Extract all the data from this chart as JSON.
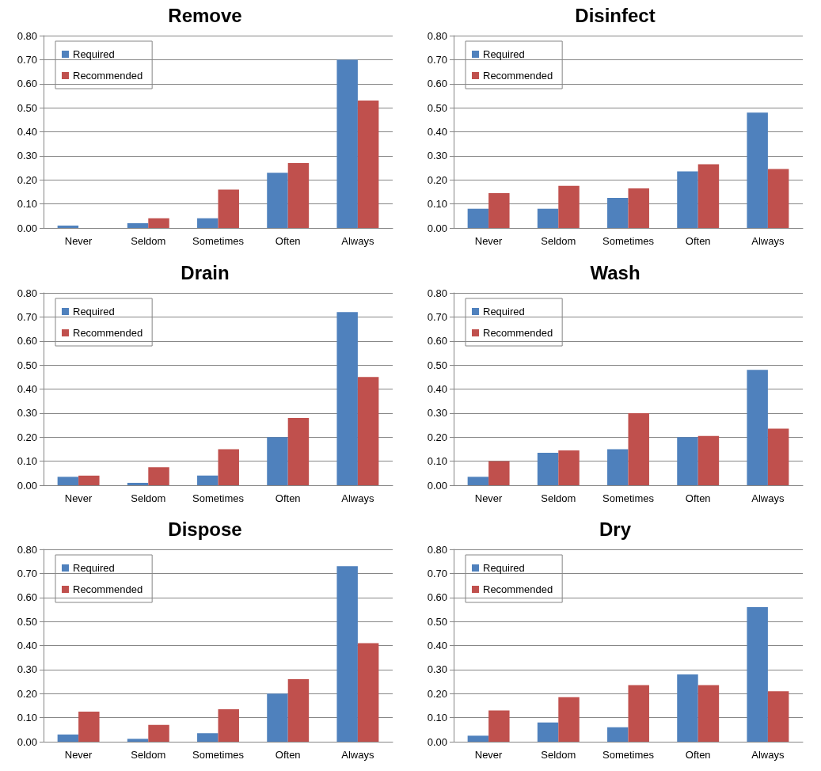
{
  "chart_data": [
    {
      "type": "bar",
      "title": "Remove",
      "categories": [
        "Never",
        "Seldom",
        "Sometimes",
        "Often",
        "Always"
      ],
      "series": [
        {
          "name": "Required",
          "color": "#4f81bd",
          "values": [
            0.01,
            0.02,
            0.04,
            0.23,
            0.7
          ]
        },
        {
          "name": "Recommended",
          "color": "#c0504d",
          "values": [
            0,
            0.04,
            0.16,
            0.27,
            0.53
          ]
        }
      ],
      "ylim": [
        0,
        0.8
      ],
      "yticks": [
        {
          "value": 0,
          "label": "0.00"
        },
        {
          "value": 0.1,
          "label": "0.10"
        },
        {
          "value": 0.2,
          "label": "0.20"
        },
        {
          "value": 0.3,
          "label": "0.30"
        },
        {
          "value": 0.4,
          "label": "0.40"
        },
        {
          "value": 0.5,
          "label": "0.50"
        },
        {
          "value": 0.6,
          "label": "0.60"
        },
        {
          "value": 0.7,
          "label": "0.70"
        },
        {
          "value": 0.8,
          "label": "0.80"
        }
      ],
      "grid": "y",
      "legend": "top left"
    },
    {
      "type": "bar",
      "title": "Disinfect",
      "categories": [
        "Never",
        "Seldom",
        "Sometimes",
        "Often",
        "Always"
      ],
      "series": [
        {
          "name": "Required",
          "color": "#4f81bd",
          "values": [
            0.08,
            0.08,
            0.125,
            0.235,
            0.48
          ]
        },
        {
          "name": "Recommended",
          "color": "#c0504d",
          "values": [
            0.145,
            0.175,
            0.165,
            0.265,
            0.245
          ]
        }
      ],
      "ylim": [
        0,
        0.8
      ],
      "yticks": [
        {
          "value": 0,
          "label": "0.00"
        },
        {
          "value": 0.1,
          "label": "0.10"
        },
        {
          "value": 0.2,
          "label": "0.20"
        },
        {
          "value": 0.3,
          "label": "0.30"
        },
        {
          "value": 0.4,
          "label": "0.40"
        },
        {
          "value": 0.5,
          "label": "0.50"
        },
        {
          "value": 0.6,
          "label": "0.60"
        },
        {
          "value": 0.7,
          "label": "0.70"
        },
        {
          "value": 0.8,
          "label": "0.80"
        }
      ],
      "grid": "y",
      "legend": "top left"
    },
    {
      "type": "bar",
      "title": "Drain",
      "categories": [
        "Never",
        "Seldom",
        "Sometimes",
        "Often",
        "Always"
      ],
      "series": [
        {
          "name": "Required",
          "color": "#4f81bd",
          "values": [
            0.035,
            0.01,
            0.04,
            0.2,
            0.72
          ]
        },
        {
          "name": "Recommended",
          "color": "#c0504d",
          "values": [
            0.04,
            0.075,
            0.15,
            0.28,
            0.45
          ]
        }
      ],
      "ylim": [
        0,
        0.8
      ],
      "yticks": [
        {
          "value": 0,
          "label": "0.00"
        },
        {
          "value": 0.1,
          "label": "0.10"
        },
        {
          "value": 0.2,
          "label": "0.20"
        },
        {
          "value": 0.3,
          "label": "0.30"
        },
        {
          "value": 0.4,
          "label": "0.40"
        },
        {
          "value": 0.5,
          "label": "0.50"
        },
        {
          "value": 0.6,
          "label": "0.60"
        },
        {
          "value": 0.7,
          "label": "0.70"
        },
        {
          "value": 0.8,
          "label": "0.80"
        }
      ],
      "grid": "y",
      "legend": "top left"
    },
    {
      "type": "bar",
      "title": "Wash",
      "categories": [
        "Never",
        "Seldom",
        "Sometimes",
        "Often",
        "Always"
      ],
      "series": [
        {
          "name": "Required",
          "color": "#4f81bd",
          "values": [
            0.035,
            0.135,
            0.15,
            0.2,
            0.48
          ]
        },
        {
          "name": "Recommended",
          "color": "#c0504d",
          "values": [
            0.1,
            0.145,
            0.3,
            0.205,
            0.235
          ]
        }
      ],
      "ylim": [
        0,
        0.8
      ],
      "yticks": [
        {
          "value": 0,
          "label": "0.00"
        },
        {
          "value": 0.1,
          "label": "0.10"
        },
        {
          "value": 0.2,
          "label": "0.20"
        },
        {
          "value": 0.3,
          "label": "0.30"
        },
        {
          "value": 0.4,
          "label": "0.40"
        },
        {
          "value": 0.5,
          "label": "0.50"
        },
        {
          "value": 0.6,
          "label": "0.60"
        },
        {
          "value": 0.7,
          "label": "0.70"
        },
        {
          "value": 0.8,
          "label": "0.80"
        }
      ],
      "grid": "y",
      "legend": "top left"
    },
    {
      "type": "bar",
      "title": "Dispose",
      "categories": [
        "Never",
        "Seldom",
        "Sometimes",
        "Often",
        "Always"
      ],
      "series": [
        {
          "name": "Required",
          "color": "#4f81bd",
          "values": [
            0.03,
            0.012,
            0.035,
            0.2,
            0.73
          ]
        },
        {
          "name": "Recommended",
          "color": "#c0504d",
          "values": [
            0.125,
            0.07,
            0.135,
            0.26,
            0.41
          ]
        }
      ],
      "ylim": [
        0,
        0.8
      ],
      "yticks": [
        {
          "value": 0,
          "label": "0.00"
        },
        {
          "value": 0.1,
          "label": "0.10"
        },
        {
          "value": 0.2,
          "label": "0.20"
        },
        {
          "value": 0.3,
          "label": "0.30"
        },
        {
          "value": 0.4,
          "label": "0.40"
        },
        {
          "value": 0.5,
          "label": "0.50"
        },
        {
          "value": 0.6,
          "label": "0.60"
        },
        {
          "value": 0.7,
          "label": "0.70"
        },
        {
          "value": 0.8,
          "label": "0.80"
        }
      ],
      "grid": "y",
      "legend": "top left"
    },
    {
      "type": "bar",
      "title": "Dry",
      "categories": [
        "Never",
        "Seldom",
        "Sometimes",
        "Often",
        "Always"
      ],
      "series": [
        {
          "name": "Required",
          "color": "#4f81bd",
          "values": [
            0.025,
            0.08,
            0.06,
            0.28,
            0.56
          ]
        },
        {
          "name": "Recommended",
          "color": "#c0504d",
          "values": [
            0.13,
            0.185,
            0.235,
            0.235,
            0.21
          ]
        }
      ],
      "ylim": [
        0,
        0.8
      ],
      "yticks": [
        {
          "value": 0,
          "label": "0.00"
        },
        {
          "value": 0.1,
          "label": "0.10"
        },
        {
          "value": 0.2,
          "label": "0.20"
        },
        {
          "value": 0.3,
          "label": "0.30"
        },
        {
          "value": 0.4,
          "label": "0.40"
        },
        {
          "value": 0.5,
          "label": "0.50"
        },
        {
          "value": 0.6,
          "label": "0.60"
        },
        {
          "value": 0.7,
          "label": "0.70"
        },
        {
          "value": 0.8,
          "label": "0.80"
        }
      ],
      "grid": "y",
      "legend": "top left"
    }
  ]
}
